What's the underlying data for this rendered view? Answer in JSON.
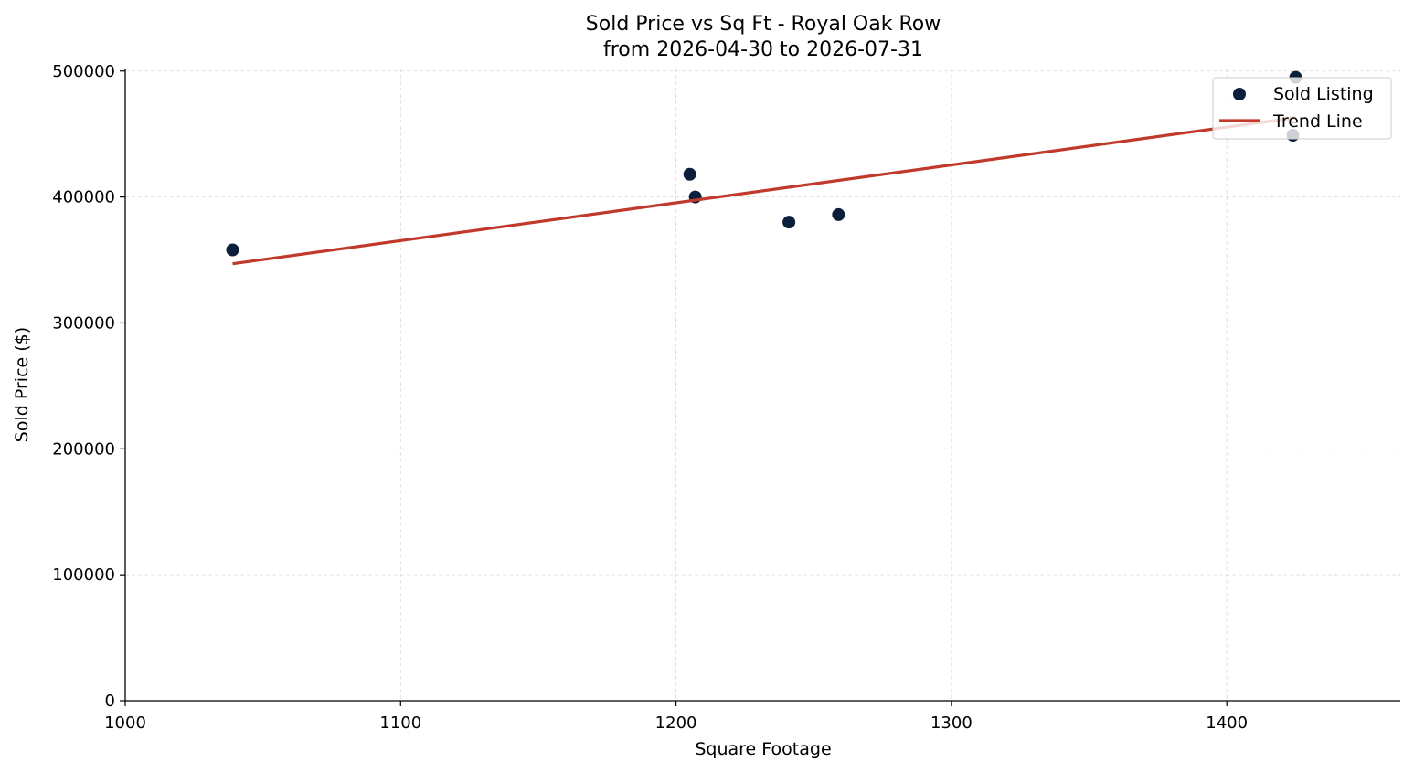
{
  "chart_data": {
    "type": "scatter",
    "title": "Sold Price vs Sq Ft - Royal Oak Row",
    "subtitle": "from 2026-04-30 to 2026-07-31",
    "xlabel": "Square Footage",
    "ylabel": "Sold Price ($)",
    "xlim": [
      1000,
      1463
    ],
    "ylim": [
      0,
      502000
    ],
    "x_ticks": [
      1000,
      1100,
      1200,
      1300,
      1400
    ],
    "y_ticks": [
      0,
      100000,
      200000,
      300000,
      400000,
      500000
    ],
    "grid": true,
    "legend_position": "top-right",
    "series": [
      {
        "name": "Sold Listing",
        "kind": "scatter",
        "color": "#0b1f3a",
        "points": [
          {
            "x": 1039,
            "y": 358000
          },
          {
            "x": 1205,
            "y": 418000
          },
          {
            "x": 1207,
            "y": 400000
          },
          {
            "x": 1241,
            "y": 380000
          },
          {
            "x": 1259,
            "y": 386000
          },
          {
            "x": 1424,
            "y": 449000
          },
          {
            "x": 1425,
            "y": 495000
          }
        ]
      },
      {
        "name": "Trend Line",
        "kind": "line",
        "color": "#c0392b",
        "points": [
          {
            "x": 1039,
            "y": 347000
          },
          {
            "x": 1425,
            "y": 463000
          }
        ]
      }
    ]
  }
}
